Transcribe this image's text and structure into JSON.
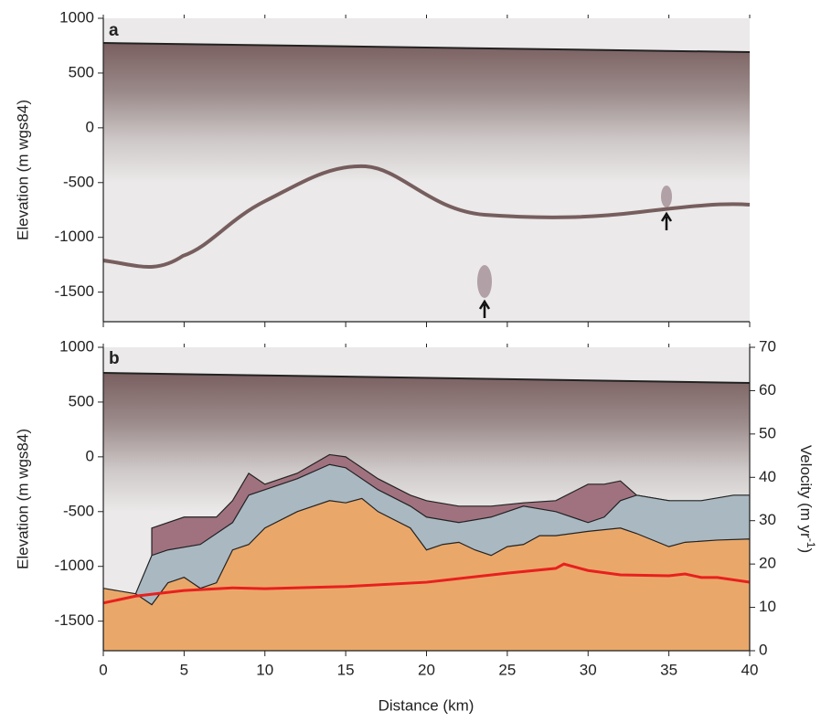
{
  "chart_data": [
    {
      "type": "radargram",
      "panel_label": "a",
      "y_label": "Elevation (m wgs84)",
      "xlim": [
        0,
        40
      ],
      "ylim": [
        -1770,
        1000
      ],
      "yticks": [
        1000,
        500,
        0,
        -500,
        -1000,
        -1500
      ]
    },
    {
      "type": "layers",
      "panel_label": "b",
      "y_label": "Elevation (m wgs84)",
      "x_label": "Distance (km)",
      "y2_label": [
        "Velocity (m yr",
        "-1",
        ")"
      ],
      "xlim": [
        0,
        40
      ],
      "xticks": [
        0,
        5,
        10,
        15,
        20,
        25,
        30,
        35,
        40
      ],
      "ylim": [
        -1770,
        1000
      ],
      "yticks": [
        1000,
        500,
        0,
        -500,
        -1000,
        -1500
      ],
      "y2lim": [
        0,
        70
      ],
      "y2ticks": [
        0,
        10,
        20,
        30,
        40,
        50,
        60,
        70
      ],
      "series": [
        {
          "kind": "area",
          "color": "#a0727f",
          "x": [
            3,
            5,
            7,
            8,
            9,
            10,
            12,
            14,
            15,
            17,
            19,
            20,
            22,
            24,
            26,
            28,
            30,
            31,
            32,
            33,
            35,
            37,
            39,
            40
          ],
          "values": [
            -650,
            -550,
            -550,
            -400,
            -150,
            -250,
            -150,
            20,
            0,
            -200,
            -350,
            -400,
            -450,
            -450,
            -420,
            -400,
            -250,
            -250,
            -220,
            -350,
            -400,
            -450,
            -400,
            -380
          ]
        },
        {
          "kind": "area",
          "color": "#aab8c1",
          "x": [
            2,
            3,
            4,
            6,
            7,
            8,
            9,
            10,
            12,
            14,
            15,
            17,
            19,
            20,
            22,
            24,
            26,
            28,
            30,
            31,
            32,
            33,
            35,
            37,
            39,
            40
          ],
          "values": [
            -1250,
            -900,
            -850,
            -800,
            -700,
            -600,
            -350,
            -300,
            -200,
            -70,
            -100,
            -300,
            -450,
            -550,
            -600,
            -550,
            -450,
            -500,
            -600,
            -550,
            -400,
            -350,
            -400,
            -400,
            -350,
            -350
          ]
        },
        {
          "kind": "area",
          "color": "#e9a86a",
          "x": [
            0,
            2,
            3,
            4,
            5,
            6,
            7,
            8,
            9,
            10,
            12,
            14,
            15,
            16,
            17,
            19,
            20,
            21,
            22,
            23,
            24,
            25,
            26,
            27,
            28,
            30,
            32,
            33,
            35,
            36,
            38,
            40
          ],
          "values": [
            -1200,
            -1250,
            -1350,
            -1150,
            -1100,
            -1200,
            -1150,
            -850,
            -800,
            -650,
            -500,
            -400,
            -420,
            -380,
            -500,
            -650,
            -850,
            -800,
            -780,
            -850,
            -900,
            -820,
            -800,
            -720,
            -720,
            -680,
            -650,
            -700,
            -820,
            -780,
            -760,
            -750
          ]
        },
        {
          "kind": "line",
          "axis": "y2",
          "color": "#e8201e",
          "x": [
            0,
            2,
            5,
            8,
            10,
            15,
            20,
            25,
            28,
            28.5,
            30,
            32,
            35,
            36,
            37,
            38,
            40
          ],
          "values": [
            11,
            12.6,
            13.9,
            14.5,
            14.3,
            14.8,
            15.8,
            17.9,
            19,
            20,
            18.5,
            17.5,
            17.3,
            17.7,
            16.9,
            16.9,
            15.8
          ]
        }
      ]
    }
  ]
}
